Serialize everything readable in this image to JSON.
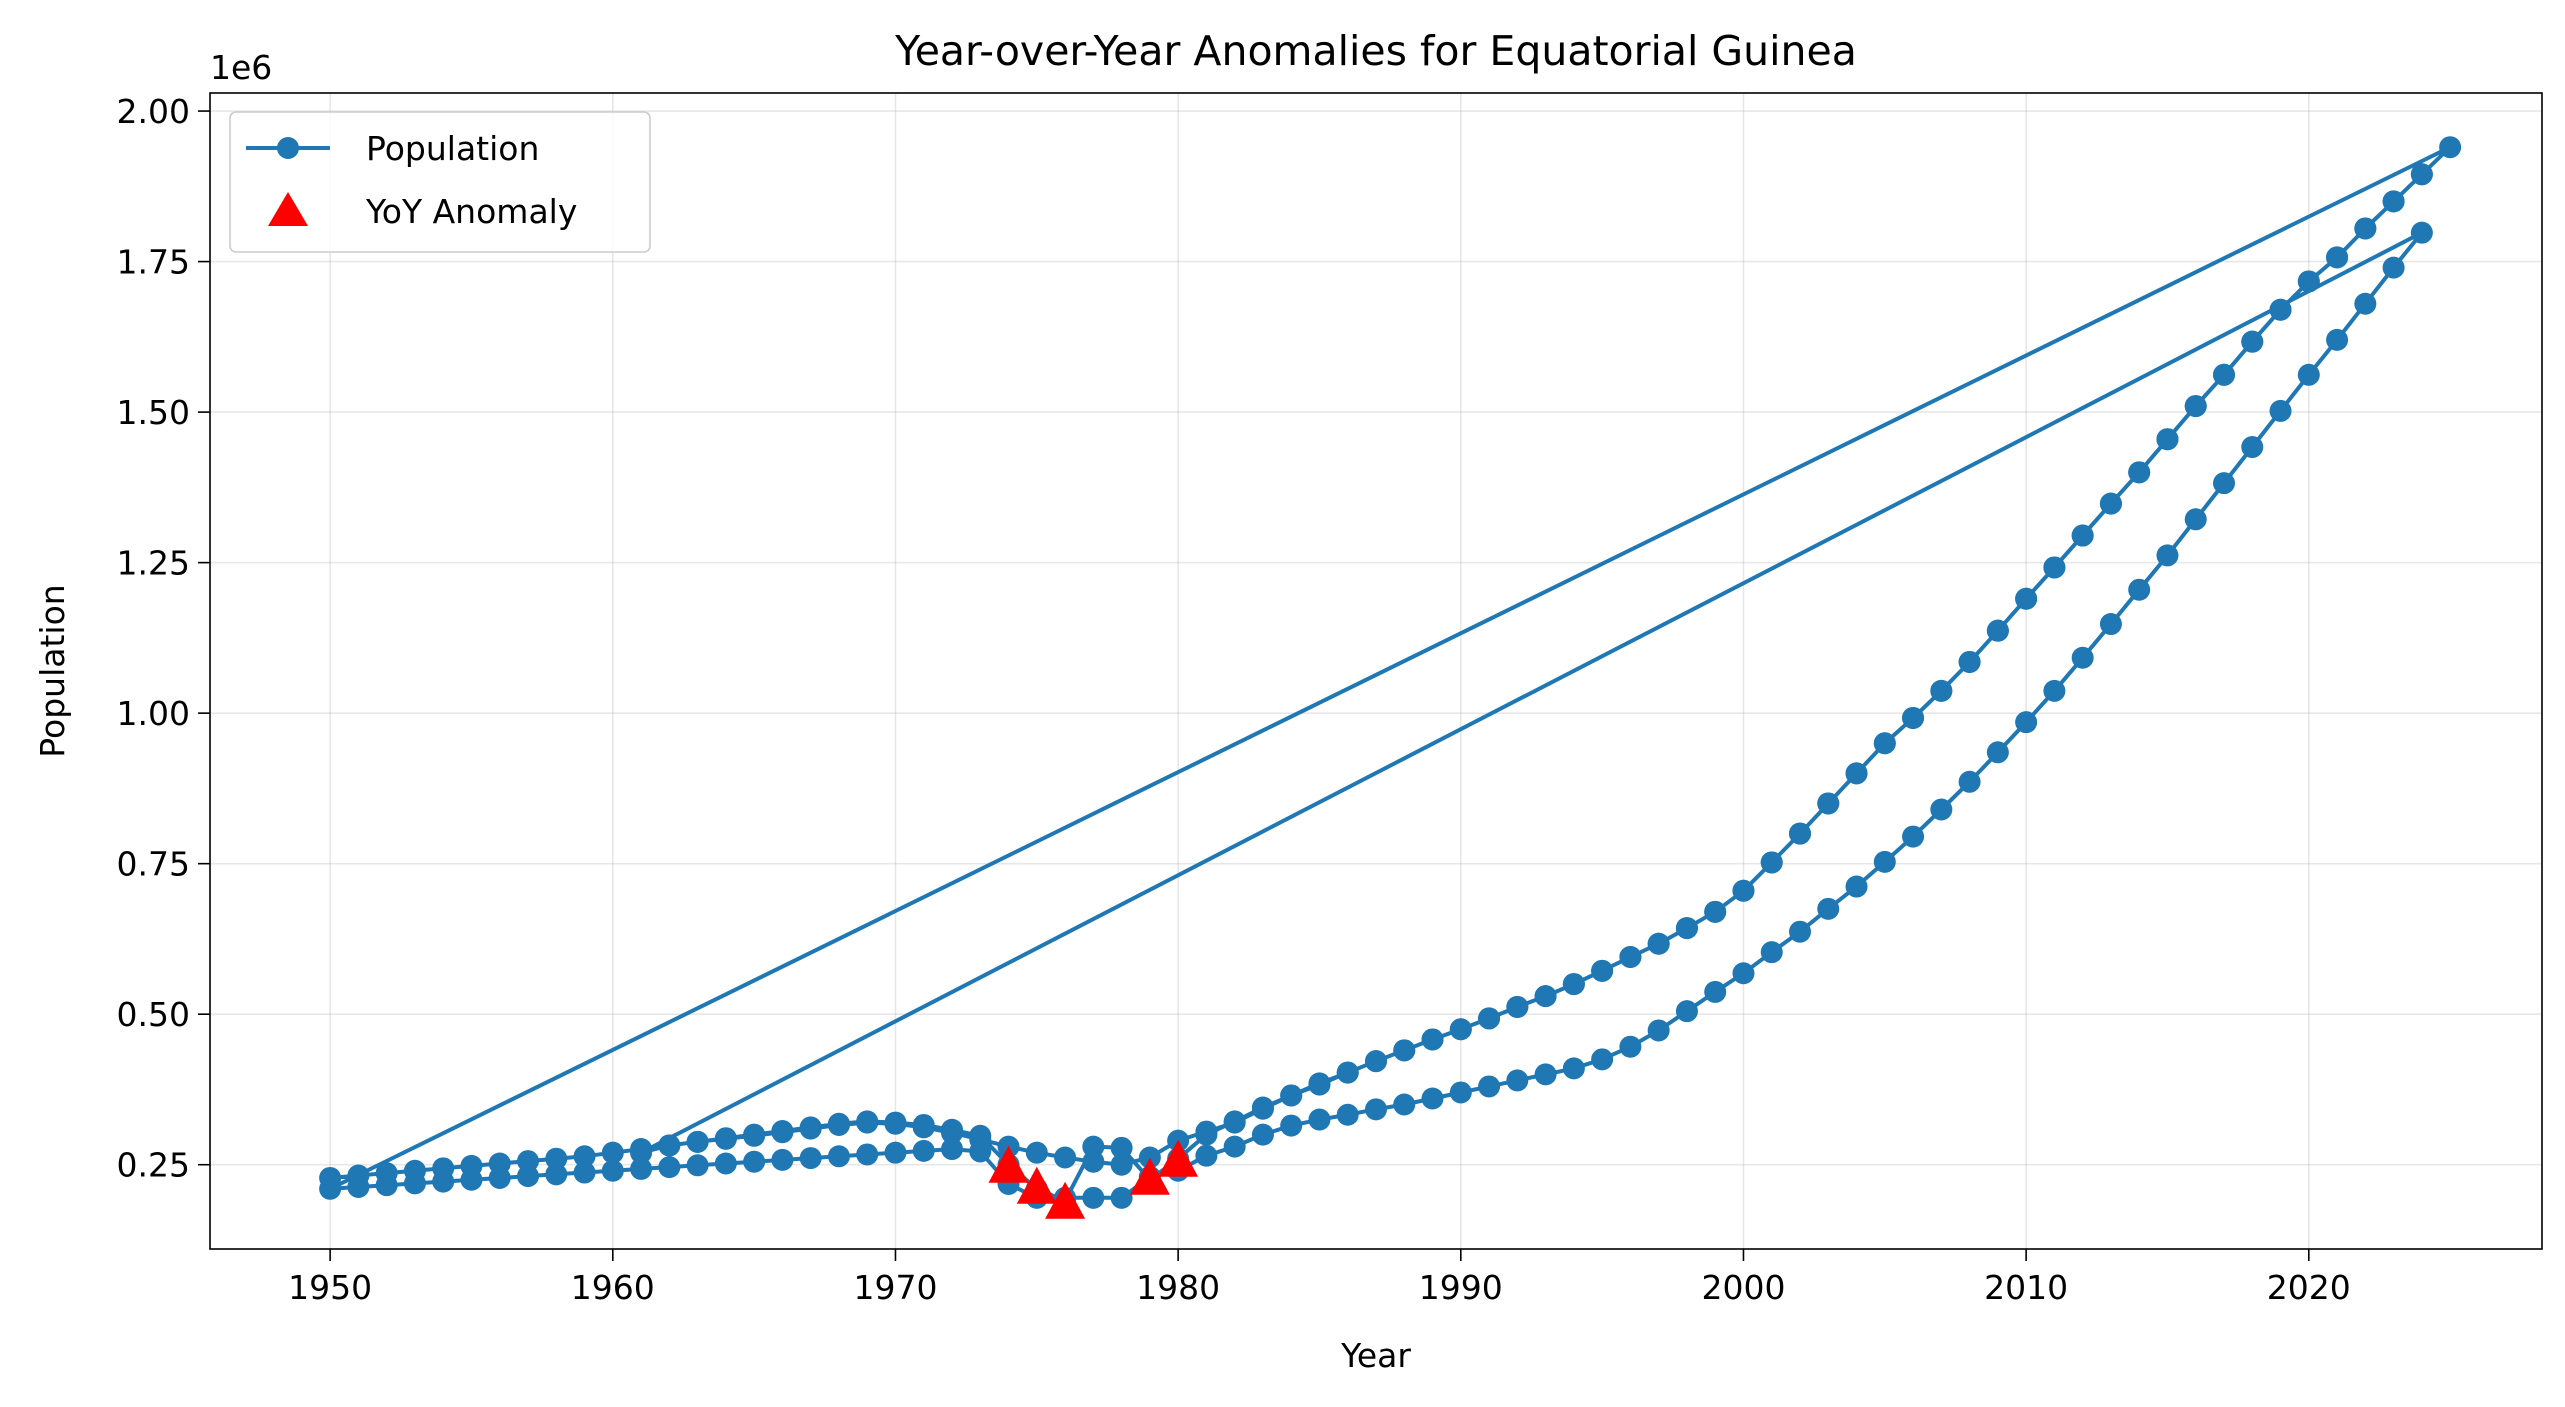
{
  "chart_data": {
    "type": "line",
    "title": "Year-over-Year Anomalies for Equatorial Guinea",
    "xlabel": "Year",
    "ylabel": "Population",
    "y_offset_label": "1e6",
    "xlim": [
      1945.75,
      2028.25
    ],
    "ylim": [
      110000,
      2030000
    ],
    "x_ticks": [
      1950,
      1960,
      1970,
      1980,
      1990,
      2000,
      2010,
      2020
    ],
    "y_ticks": [
      250000,
      500000,
      750000,
      1000000,
      1250000,
      1500000,
      1750000,
      2000000
    ],
    "y_tick_labels": [
      "0.25",
      "0.50",
      "0.75",
      "1.00",
      "1.25",
      "1.50",
      "1.75",
      "2.00"
    ],
    "grid": true,
    "legend_position": "top-left",
    "colors": {
      "line": "#1f77b4",
      "anomaly": "#ff0000"
    },
    "series": [
      {
        "name": "Population",
        "marker": "circle",
        "x": [
          1950,
          1951,
          1952,
          1953,
          1954,
          1955,
          1956,
          1957,
          1958,
          1959,
          1960,
          1961,
          1962,
          1963,
          1964,
          1965,
          1966,
          1967,
          1968,
          1969,
          1970,
          1971,
          1972,
          1973,
          1974,
          1975,
          1976,
          1977,
          1978,
          1979,
          1980,
          1981,
          1982,
          1983,
          1984,
          1985,
          1986,
          1987,
          1988,
          1989,
          1990,
          1991,
          1992,
          1993,
          1994,
          1995,
          1996,
          1997,
          1998,
          1999,
          2000,
          2001,
          2002,
          2003,
          2004,
          2005,
          2006,
          2007,
          2008,
          2009,
          2010,
          2011,
          2012,
          2013,
          2014,
          2015,
          2016,
          2017,
          2018,
          2019,
          2020,
          2021,
          2022,
          2023,
          2024,
          2025,
          1950,
          1951,
          1952,
          1953,
          1954,
          1955,
          1956,
          1957,
          1958,
          1959,
          1960,
          1961,
          1962,
          1963,
          1964,
          1965,
          1966,
          1967,
          1968,
          1969,
          1970,
          1971,
          1972,
          1973,
          1974,
          1975,
          1976,
          1977,
          1978,
          1979,
          1980,
          1981,
          1982,
          1983,
          1984,
          1985,
          1986,
          1987,
          1988,
          1989,
          1990,
          1991,
          1992,
          1993,
          1994,
          1995,
          1996,
          1997,
          1998,
          1999,
          2000,
          2001,
          2002,
          2003,
          2004,
          2005,
          2006,
          2007,
          2008,
          2009,
          2010,
          2011,
          2012,
          2013,
          2014,
          2015,
          2016,
          2017,
          2018,
          2019,
          2020,
          2021,
          2022,
          2023,
          2024,
          1961,
          1962,
          1963,
          1964,
          1965,
          1966,
          1967,
          1968,
          1969,
          1970,
          1971,
          1972,
          1973,
          1974,
          1975,
          1976,
          1977,
          1978,
          1979,
          1980,
          1981,
          1982,
          1983,
          1984,
          1985,
          1986,
          1987,
          1988,
          1989,
          1990,
          1991,
          1992,
          1993,
          1994,
          1995,
          1996,
          1997,
          1998,
          1999,
          2000,
          2001,
          2002,
          2003,
          2004,
          2005,
          2006,
          2007,
          2008,
          2009,
          2010,
          2011,
          2012,
          2013,
          2014,
          2015,
          2016,
          2017,
          2018,
          2019,
          2020,
          2021,
          2022,
          2023,
          2024
        ],
        "y": [
          228000,
          232000,
          236000,
          240000,
          244000,
          248000,
          252000,
          256000,
          260000,
          264000,
          270000,
          276000,
          282000,
          288000,
          294000,
          300000,
          306000,
          312000,
          318000,
          322000,
          320000,
          316000,
          308000,
          298000,
          250000,
          210000,
          190000,
          280000,
          278000,
          225000,
          260000,
          300000,
          322000,
          345000,
          365000,
          385000,
          403000,
          422000,
          440000,
          458000,
          475000,
          493000,
          512000,
          530000,
          550000,
          572000,
          595000,
          617000,
          643000,
          670000,
          705000,
          752000,
          800000,
          850000,
          900000,
          950000,
          992000,
          1037000,
          1085000,
          1137000,
          1190000,
          1242000,
          1295000,
          1348000,
          1400000,
          1455000,
          1510000,
          1562000,
          1617000,
          1670000,
          1717000,
          1757000,
          1805000,
          1850000,
          1895000,
          1940000,
          210000,
          213000,
          216000,
          219000,
          222000,
          225000,
          228000,
          231000,
          234000,
          237000,
          240000,
          243000,
          246000,
          249000,
          252000,
          255000,
          258000,
          261000,
          264000,
          267000,
          270000,
          273000,
          276000,
          272000,
          218000,
          195000,
          195000,
          195000,
          195000,
          230000,
          240000,
          265000,
          280000,
          300000,
          315000,
          325000,
          333000,
          342000,
          350000,
          360000,
          370000,
          380000,
          390000,
          400000,
          410000,
          425000,
          446000,
          473000,
          505000,
          537000,
          568000,
          603000,
          637000,
          675000,
          712000,
          753000,
          795000,
          840000,
          886000,
          935000,
          985000,
          1037000,
          1092000,
          1148000,
          1205000,
          1262000,
          1322000,
          1382000,
          1442000,
          1502000,
          1562000,
          1620000,
          1680000,
          1740000,
          1798000,
          270000,
          282000,
          288000,
          293000,
          298000,
          304000,
          310000,
          316000,
          320000,
          318000,
          312000,
          303000,
          292000,
          280000,
          270000,
          262000,
          255000,
          250000,
          262000,
          290000,
          305000,
          320000,
          343000,
          365000,
          383000,
          403000,
          422000,
          440000,
          458000,
          475000,
          493000,
          512000,
          530000,
          550000,
          572000,
          595000,
          617000,
          643000,
          670000,
          705000,
          752000,
          800000,
          850000,
          900000,
          950000,
          992000,
          1037000,
          1085000,
          1137000,
          1190000,
          1242000,
          1295000,
          1348000,
          1400000,
          1455000,
          1510000,
          1562000,
          1617000,
          1670000,
          1717000,
          1757000,
          1805000,
          1850000,
          1895000
        ]
      },
      {
        "name": "YoY Anomaly",
        "marker": "triangle",
        "x": [
          1974,
          1975,
          1976,
          1979,
          1980
        ],
        "y": [
          245000,
          210000,
          185000,
          225000,
          255000
        ]
      }
    ]
  }
}
